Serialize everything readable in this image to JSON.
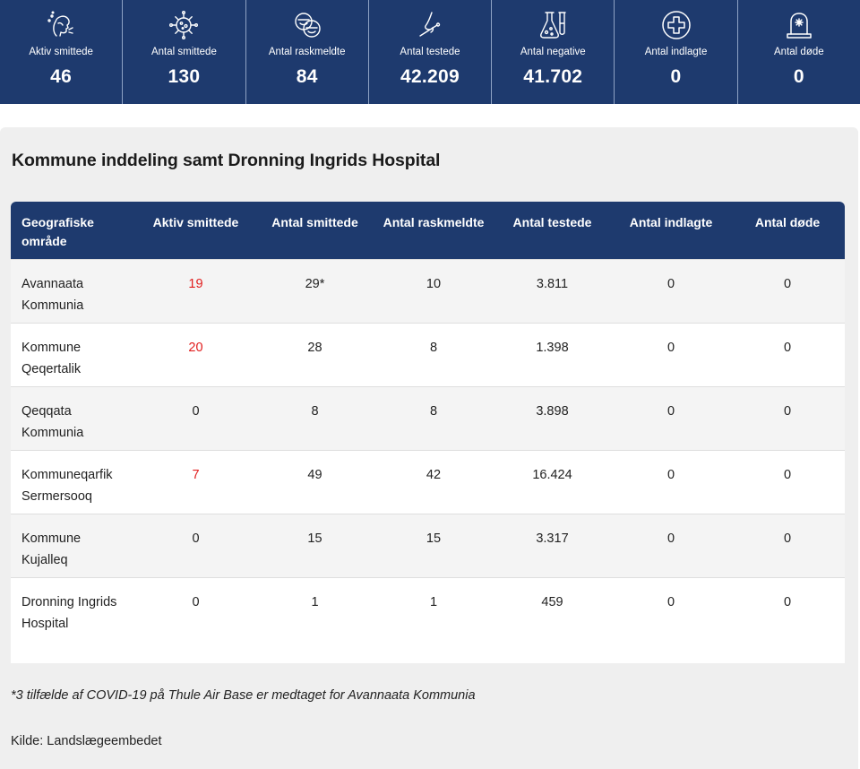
{
  "stats": [
    {
      "icon": "infected-person-icon",
      "label": "Aktiv smittede",
      "value": "46"
    },
    {
      "icon": "virus-icon",
      "label": "Antal smittede",
      "value": "130"
    },
    {
      "icon": "recovered-faces-icon",
      "label": "Antal raskmeldte",
      "value": "84"
    },
    {
      "icon": "nose-swab-icon",
      "label": "Antal testede",
      "value": "42.209"
    },
    {
      "icon": "lab-flask-icon",
      "label": "Antal negative",
      "value": "41.702"
    },
    {
      "icon": "hospital-cross-icon",
      "label": "Antal indlagte",
      "value": "0"
    },
    {
      "icon": "tombstone-icon",
      "label": "Antal døde",
      "value": "0"
    }
  ],
  "section": {
    "title": "Kommune inddeling samt Dronning Ingrids Hospital",
    "columns": [
      "Geografiske område",
      "Aktiv smittede",
      "Antal smittede",
      "Antal raskmeldte",
      "Antal testede",
      "Antal indlagte",
      "Antal døde"
    ],
    "rows": [
      {
        "area": "Avannaata Kommunia",
        "active": "19",
        "active_red": true,
        "infected": "29*",
        "recovered": "10",
        "tested": "3.811",
        "admitted": "0",
        "deaths": "0"
      },
      {
        "area": "Kommune Qeqertalik",
        "active": "20",
        "active_red": true,
        "infected": "28",
        "recovered": "8",
        "tested": "1.398",
        "admitted": "0",
        "deaths": "0"
      },
      {
        "area": "Qeqqata Kommunia",
        "active": "0",
        "active_red": false,
        "infected": "8",
        "recovered": "8",
        "tested": "3.898",
        "admitted": "0",
        "deaths": "0"
      },
      {
        "area": "Kommuneqarfik Sermersooq",
        "active": "7",
        "active_red": true,
        "infected": "49",
        "recovered": "42",
        "tested": "16.424",
        "admitted": "0",
        "deaths": "0"
      },
      {
        "area": "Kommune Kujalleq",
        "active": "0",
        "active_red": false,
        "infected": "15",
        "recovered": "15",
        "tested": "3.317",
        "admitted": "0",
        "deaths": "0"
      },
      {
        "area": "Dronning Ingrids Hospital",
        "active": "0",
        "active_red": false,
        "infected": "1",
        "recovered": "1",
        "tested": "459",
        "admitted": "0",
        "deaths": "0"
      }
    ],
    "footnote": "*3 tilfælde af COVID-19 på Thule Air Base er medtaget for Avannaata Kommunia",
    "source": "Kilde: Landslægeembedet"
  },
  "colors": {
    "header_bg": "#1e3a6e",
    "highlight_red": "#e11d1d",
    "panel_bg": "#efefef"
  }
}
